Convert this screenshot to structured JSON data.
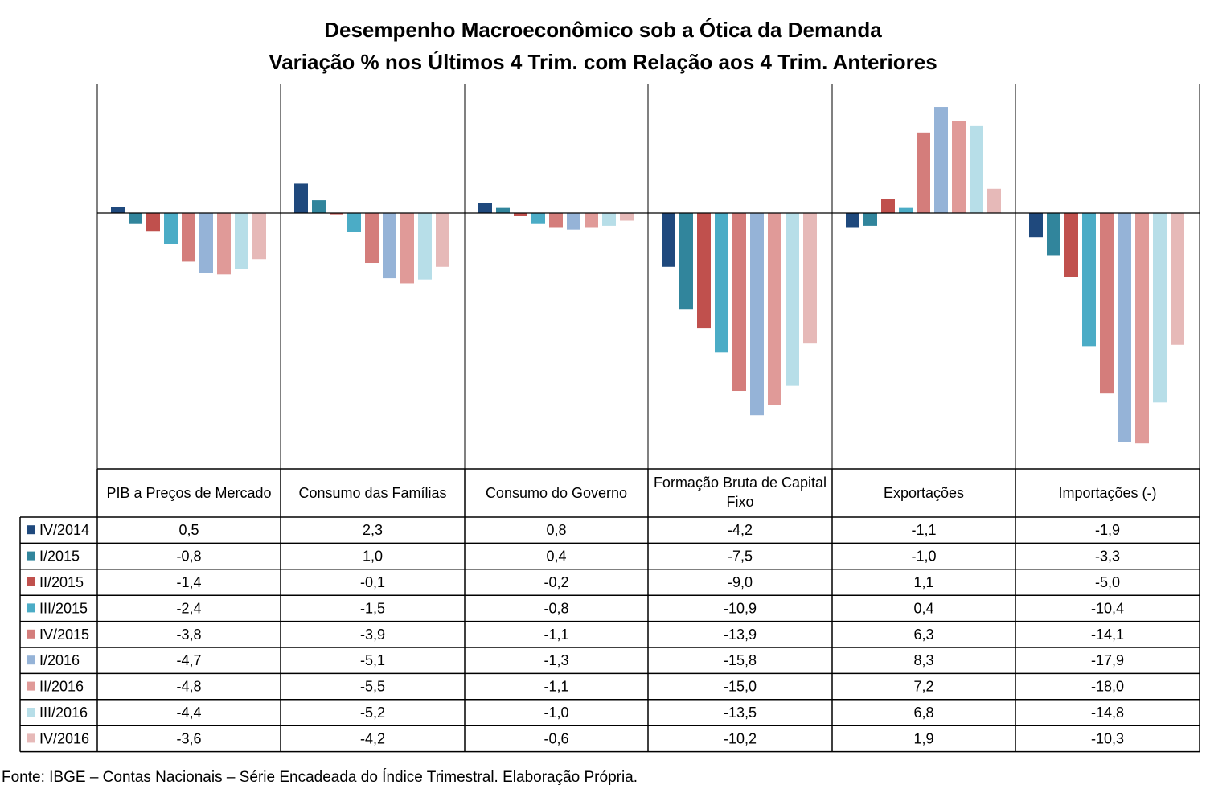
{
  "chart_data": {
    "type": "bar",
    "title": "Desempenho Macroeconômico sob a Ótica da Demanda",
    "subtitle": "Variação % nos Últimos 4 Trim. com Relação aos  4 Trim. Anteriores",
    "categories": [
      "PIB a Preços de Mercado",
      "Consumo das Famílias",
      "Consumo do Governo",
      "Formação Bruta de Capital Fixo",
      "Exportações",
      "Importações (-)"
    ],
    "ylim": [
      -18.0,
      8.8
    ],
    "grid": false,
    "legend": "data table below chart",
    "series": [
      {
        "name": "IV/2014",
        "color": "#1f497d",
        "values": [
          0.5,
          2.3,
          0.8,
          -4.2,
          -1.1,
          -1.9
        ]
      },
      {
        "name": "I/2015",
        "color": "#31859c",
        "values": [
          -0.8,
          1.0,
          0.4,
          -7.5,
          -1.0,
          -3.3
        ]
      },
      {
        "name": "II/2015",
        "color": "#c0504d",
        "values": [
          -1.4,
          -0.1,
          -0.2,
          -9.0,
          1.1,
          -5.0
        ]
      },
      {
        "name": "III/2015",
        "color": "#4bacc6",
        "values": [
          -2.4,
          -1.5,
          -0.8,
          -10.9,
          0.4,
          -10.4
        ]
      },
      {
        "name": "IV/2015",
        "color": "#d47d7b",
        "values": [
          -3.8,
          -3.9,
          -1.1,
          -13.9,
          6.3,
          -14.1
        ]
      },
      {
        "name": "I/2016",
        "color": "#95b3d7",
        "values": [
          -4.7,
          -5.1,
          -1.3,
          -15.8,
          8.3,
          -17.9
        ]
      },
      {
        "name": "II/2016",
        "color": "#e09a98",
        "values": [
          -4.8,
          -5.5,
          -1.1,
          -15.0,
          7.2,
          -18.0
        ]
      },
      {
        "name": "III/2016",
        "color": "#b7dee8",
        "values": [
          -4.4,
          -5.2,
          -1.0,
          -13.5,
          6.8,
          -14.8
        ]
      },
      {
        "name": "IV/2016",
        "color": "#e6b9b8",
        "values": [
          -3.6,
          -4.2,
          -0.6,
          -10.2,
          1.9,
          -10.3
        ]
      }
    ],
    "table_values": [
      [
        "0,5",
        "2,3",
        "0,8",
        "-4,2",
        "-1,1",
        "-1,9"
      ],
      [
        "-0,8",
        "1,0",
        "0,4",
        "-7,5",
        "-1,0",
        "-3,3"
      ],
      [
        "-1,4",
        "-0,1",
        "-0,2",
        "-9,0",
        "1,1",
        "-5,0"
      ],
      [
        "-2,4",
        "-1,5",
        "-0,8",
        "-10,9",
        "0,4",
        "-10,4"
      ],
      [
        "-3,8",
        "-3,9",
        "-1,1",
        "-13,9",
        "6,3",
        "-14,1"
      ],
      [
        "-4,7",
        "-5,1",
        "-1,3",
        "-15,8",
        "8,3",
        "-17,9"
      ],
      [
        "-4,8",
        "-5,5",
        "-1,1",
        "-15,0",
        "7,2",
        "-18,0"
      ],
      [
        "-4,4",
        "-5,2",
        "-1,0",
        "-13,5",
        "6,8",
        "-14,8"
      ],
      [
        "-3,6",
        "-4,2",
        "-0,6",
        "-10,2",
        "1,9",
        "-10,3"
      ]
    ]
  },
  "source": "Fonte: IBGE – Contas Nacionais – Série Encadeada do Índice Trimestral. Elaboração Própria."
}
